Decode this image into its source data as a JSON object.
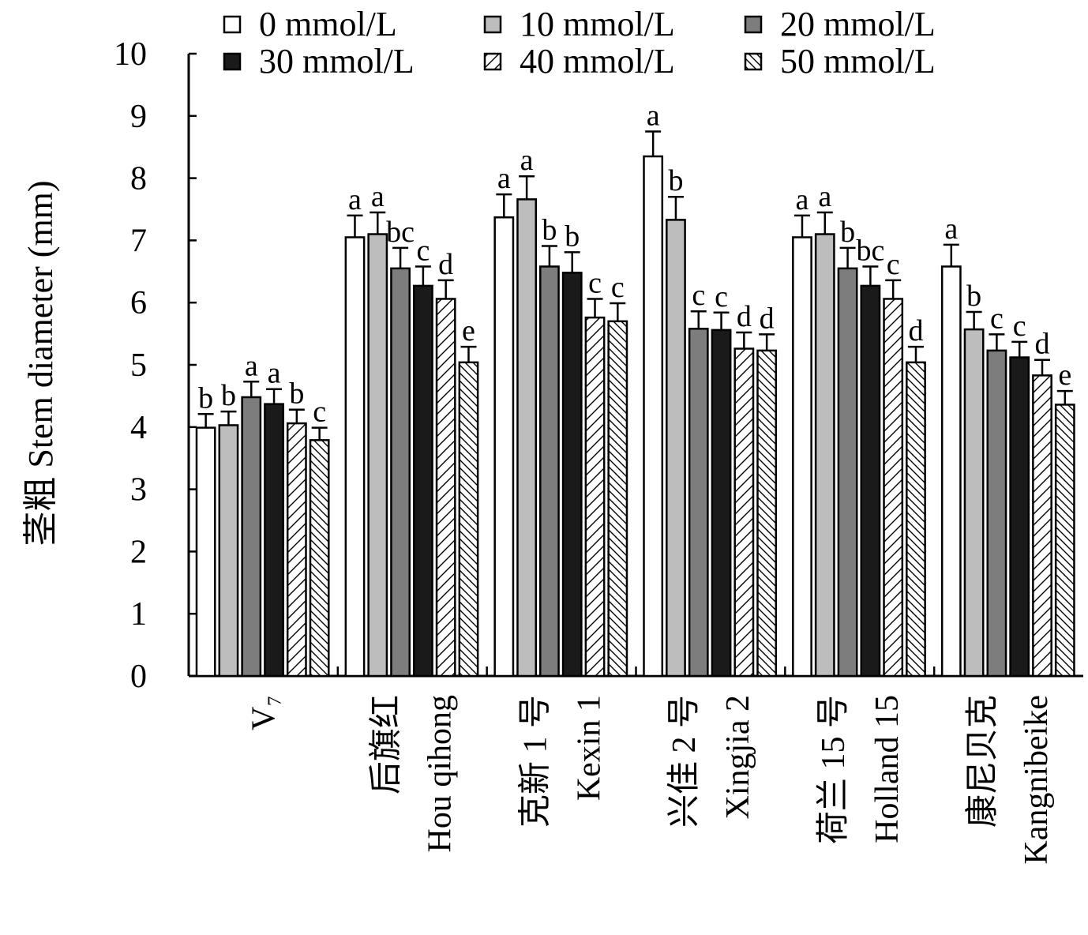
{
  "chart_data": {
    "type": "bar",
    "ylabel": "茎粗 Stem diameter (mm)",
    "ylim": [
      0,
      10
    ],
    "yticks": [
      "0",
      "1",
      "2",
      "3",
      "4",
      "5",
      "6",
      "7",
      "8",
      "9",
      "10"
    ],
    "categories": [
      [
        "V₇"
      ],
      [
        "后旗红",
        "Hou qihong"
      ],
      [
        "克新 1 号",
        "Kexin 1"
      ],
      [
        "兴佳 2 号",
        "Xingjia 2"
      ],
      [
        "荷兰 15 号",
        "Holland 15"
      ],
      [
        "康尼贝克",
        "Kangnibeike"
      ]
    ],
    "legend": {
      "position": "top"
    },
    "series": [
      {
        "name": "0 mmol/L",
        "pattern": "white",
        "values": [
          3.99,
          7.05,
          7.37,
          8.35,
          7.05,
          6.58
        ],
        "errors": [
          0.22,
          0.35,
          0.37,
          0.4,
          0.35,
          0.35
        ],
        "letters": [
          "b",
          "a",
          "a",
          "a",
          "a",
          "a"
        ]
      },
      {
        "name": "10 mmol/L",
        "pattern": "lightgray",
        "values": [
          4.03,
          7.1,
          7.66,
          7.33,
          7.1,
          5.57
        ],
        "errors": [
          0.22,
          0.35,
          0.37,
          0.37,
          0.35,
          0.28
        ],
        "letters": [
          "b",
          "a",
          "a",
          "b",
          "a",
          "b"
        ]
      },
      {
        "name": "20 mmol/L",
        "pattern": "darkgray",
        "values": [
          4.48,
          6.55,
          6.58,
          5.58,
          6.55,
          5.23
        ],
        "errors": [
          0.25,
          0.33,
          0.33,
          0.28,
          0.33,
          0.26
        ],
        "letters": [
          "a",
          "bc",
          "b",
          "c",
          "b",
          "c"
        ]
      },
      {
        "name": "30 mmol/L",
        "pattern": "black",
        "values": [
          4.37,
          6.27,
          6.48,
          5.56,
          6.27,
          5.12
        ],
        "errors": [
          0.24,
          0.31,
          0.33,
          0.28,
          0.31,
          0.25
        ],
        "letters": [
          "a",
          "c",
          "b",
          "c",
          "bc",
          "c"
        ]
      },
      {
        "name": "40 mmol/L",
        "pattern": "hatch-forward",
        "values": [
          4.06,
          6.06,
          5.76,
          5.26,
          6.06,
          4.83
        ],
        "errors": [
          0.22,
          0.3,
          0.3,
          0.26,
          0.3,
          0.25
        ],
        "letters": [
          "b",
          "d",
          "c",
          "d",
          "c",
          "d"
        ]
      },
      {
        "name": "50 mmol/L",
        "pattern": "hatch-back",
        "values": [
          3.79,
          5.04,
          5.7,
          5.23,
          5.04,
          4.36
        ],
        "errors": [
          0.2,
          0.25,
          0.29,
          0.26,
          0.25,
          0.22
        ],
        "letters": [
          "c",
          "e",
          "c",
          "d",
          "d",
          "e"
        ]
      }
    ]
  }
}
